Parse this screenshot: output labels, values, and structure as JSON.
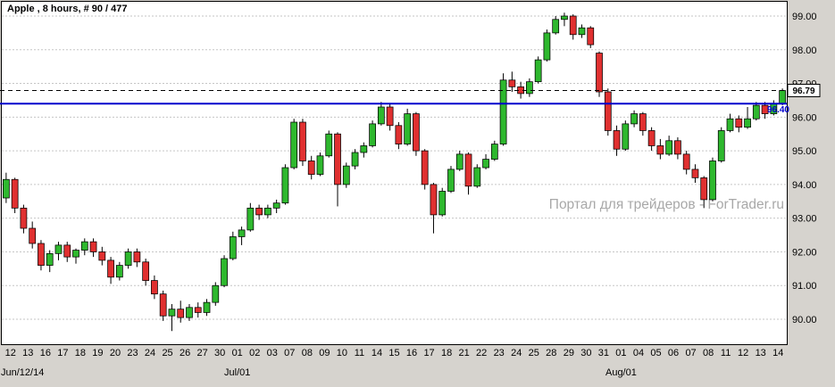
{
  "watermark": "Портал для трейдеров - ForTrader.ru",
  "chart_data": {
    "type": "candlestick",
    "title": "Apple , 8 hours, # 90 / 477",
    "symbol": "Apple",
    "timeframe": "8 hours",
    "bar_counter": "# 90 / 477",
    "ylim": [
      89.4,
      99.4
    ],
    "y_ticks": [
      "99.00",
      "98.00",
      "97.00",
      "96.00",
      "95.00",
      "94.00",
      "93.00",
      "92.00",
      "91.00",
      "90.00"
    ],
    "x_day_labels": [
      "12",
      "13",
      "16",
      "17",
      "18",
      "19",
      "20",
      "23",
      "24",
      "25",
      "26",
      "27",
      "30",
      "01",
      "02",
      "03",
      "07",
      "08",
      "09",
      "10",
      "11",
      "14",
      "15",
      "16",
      "17",
      "18",
      "21",
      "22",
      "23",
      "24",
      "25",
      "28",
      "29",
      "30",
      "31",
      "01",
      "04",
      "05",
      "06",
      "07",
      "08",
      "11",
      "12",
      "13",
      "14"
    ],
    "x_period_labels": [
      {
        "label": "Jun/12/14",
        "day_index": 0,
        "align": "left"
      },
      {
        "label": "Jul/01",
        "day_index": 13,
        "align": "center"
      },
      {
        "label": "Aug/01",
        "day_index": 35,
        "align": "center"
      }
    ],
    "price_line": {
      "value": 96.4,
      "label": "96.40",
      "color": "#0000cd"
    },
    "current_price": {
      "value": 96.79,
      "label": "96.79"
    },
    "colors": {
      "up": "#2eb82e",
      "down": "#e03030",
      "wick": "#000000",
      "grid": "#c6c6c6",
      "background": "#ffffff",
      "frame": "#000000",
      "outer": "#d6d3ce",
      "watermark": "#a8a8a8"
    },
    "candles": [
      [
        93.6,
        94.35,
        93.45,
        94.15
      ],
      [
        94.15,
        94.2,
        93.15,
        93.3
      ],
      [
        93.3,
        93.4,
        92.55,
        92.7
      ],
      [
        92.7,
        92.9,
        92.1,
        92.25
      ],
      [
        92.25,
        92.35,
        91.45,
        91.6
      ],
      [
        91.6,
        92.05,
        91.4,
        91.95
      ],
      [
        91.95,
        92.3,
        91.75,
        92.2
      ],
      [
        92.2,
        92.3,
        91.7,
        91.85
      ],
      [
        91.85,
        92.1,
        91.65,
        92.05
      ],
      [
        92.05,
        92.4,
        91.9,
        92.3
      ],
      [
        92.3,
        92.4,
        91.85,
        92.0
      ],
      [
        92.0,
        92.15,
        91.6,
        91.75
      ],
      [
        91.75,
        91.85,
        91.05,
        91.25
      ],
      [
        91.25,
        91.7,
        91.15,
        91.6
      ],
      [
        91.6,
        92.1,
        91.5,
        92.0
      ],
      [
        92.0,
        92.1,
        91.55,
        91.7
      ],
      [
        91.7,
        91.8,
        91.0,
        91.15
      ],
      [
        91.15,
        91.3,
        90.6,
        90.75
      ],
      [
        90.75,
        90.85,
        89.95,
        90.1
      ],
      [
        90.1,
        90.45,
        89.65,
        90.3
      ],
      [
        90.3,
        90.55,
        89.9,
        90.05
      ],
      [
        90.05,
        90.45,
        89.95,
        90.35
      ],
      [
        90.35,
        90.5,
        90.05,
        90.2
      ],
      [
        90.2,
        90.6,
        90.1,
        90.5
      ],
      [
        90.5,
        91.1,
        90.4,
        91.0
      ],
      [
        91.0,
        91.9,
        90.95,
        91.8
      ],
      [
        91.8,
        92.6,
        91.75,
        92.45
      ],
      [
        92.45,
        92.75,
        92.2,
        92.65
      ],
      [
        92.65,
        93.45,
        92.6,
        93.3
      ],
      [
        93.3,
        93.4,
        92.95,
        93.1
      ],
      [
        93.1,
        93.4,
        93.0,
        93.3
      ],
      [
        93.3,
        93.55,
        93.15,
        93.45
      ],
      [
        93.45,
        94.6,
        93.4,
        94.5
      ],
      [
        94.5,
        95.95,
        94.45,
        95.85
      ],
      [
        95.85,
        95.95,
        94.55,
        94.7
      ],
      [
        94.7,
        94.85,
        94.15,
        94.3
      ],
      [
        94.3,
        94.95,
        94.25,
        94.85
      ],
      [
        94.85,
        95.6,
        94.8,
        95.5
      ],
      [
        95.5,
        95.55,
        93.35,
        94.0
      ],
      [
        94.0,
        94.65,
        93.9,
        94.55
      ],
      [
        94.55,
        95.05,
        94.45,
        94.95
      ],
      [
        94.95,
        95.25,
        94.8,
        95.15
      ],
      [
        95.15,
        95.9,
        95.1,
        95.8
      ],
      [
        95.8,
        96.45,
        95.75,
        96.3
      ],
      [
        96.3,
        96.4,
        95.6,
        95.75
      ],
      [
        95.75,
        95.85,
        95.05,
        95.2
      ],
      [
        95.2,
        96.25,
        95.15,
        96.1
      ],
      [
        96.1,
        96.15,
        94.85,
        95.0
      ],
      [
        95.0,
        95.05,
        93.85,
        94.0
      ],
      [
        94.0,
        94.05,
        92.55,
        93.1
      ],
      [
        93.1,
        93.9,
        93.05,
        93.8
      ],
      [
        93.8,
        94.55,
        93.75,
        94.45
      ],
      [
        94.45,
        95.0,
        94.4,
        94.9
      ],
      [
        94.9,
        94.95,
        93.7,
        93.95
      ],
      [
        93.95,
        94.6,
        93.9,
        94.5
      ],
      [
        94.5,
        94.9,
        94.45,
        94.75
      ],
      [
        94.75,
        95.3,
        94.7,
        95.2
      ],
      [
        95.2,
        97.3,
        95.15,
        97.1
      ],
      [
        97.1,
        97.35,
        96.75,
        96.9
      ],
      [
        96.9,
        97.05,
        96.55,
        96.7
      ],
      [
        96.7,
        97.15,
        96.6,
        97.05
      ],
      [
        97.05,
        97.8,
        97.0,
        97.7
      ],
      [
        97.7,
        98.6,
        97.65,
        98.5
      ],
      [
        98.5,
        99.0,
        98.45,
        98.9
      ],
      [
        98.9,
        99.1,
        98.7,
        99.0
      ],
      [
        99.0,
        99.05,
        98.3,
        98.45
      ],
      [
        98.45,
        98.75,
        98.35,
        98.65
      ],
      [
        98.65,
        98.7,
        98.05,
        98.15
      ],
      [
        97.9,
        97.95,
        96.6,
        96.75
      ],
      [
        96.75,
        96.85,
        95.45,
        95.6
      ],
      [
        95.6,
        95.75,
        94.85,
        95.05
      ],
      [
        95.05,
        95.9,
        95.0,
        95.8
      ],
      [
        95.8,
        96.2,
        95.7,
        96.1
      ],
      [
        96.1,
        96.15,
        95.45,
        95.6
      ],
      [
        95.6,
        95.7,
        95.0,
        95.15
      ],
      [
        95.15,
        95.35,
        94.75,
        94.9
      ],
      [
        94.9,
        95.45,
        94.85,
        95.3
      ],
      [
        95.3,
        95.4,
        94.75,
        94.9
      ],
      [
        94.9,
        95.0,
        94.3,
        94.45
      ],
      [
        94.45,
        94.6,
        94.05,
        94.2
      ],
      [
        94.2,
        94.25,
        93.3,
        93.55
      ],
      [
        93.55,
        94.8,
        93.5,
        94.7
      ],
      [
        94.7,
        95.7,
        94.65,
        95.6
      ],
      [
        95.6,
        96.1,
        95.55,
        95.95
      ],
      [
        95.95,
        96.05,
        95.55,
        95.7
      ],
      [
        95.7,
        96.3,
        95.65,
        95.95
      ],
      [
        95.95,
        96.45,
        95.9,
        96.35
      ],
      [
        96.35,
        96.45,
        95.95,
        96.1
      ],
      [
        96.1,
        96.5,
        96.05,
        96.4
      ],
      [
        96.4,
        96.85,
        96.35,
        96.79
      ]
    ]
  }
}
